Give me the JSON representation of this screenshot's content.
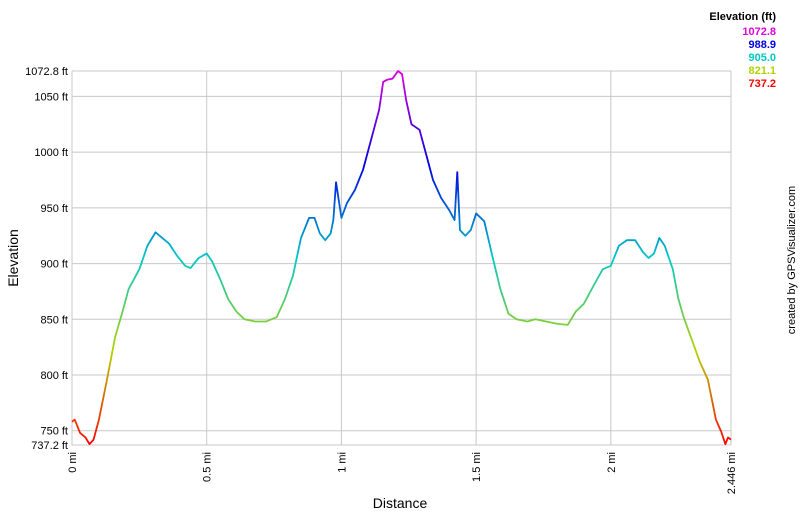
{
  "chart_data": {
    "type": "line",
    "x_label": "Distance",
    "y_label": "Elevation",
    "source": "created by GPSVisualizer.com",
    "legend": {
      "title": "Elevation (ft)",
      "stops": [
        {
          "value": 1072.8,
          "color": "#e000e0"
        },
        {
          "value": 988.9,
          "color": "#0000e0"
        },
        {
          "value": 905,
          "label": "905.0",
          "color": "#00c8c8"
        },
        {
          "value": 821.1,
          "color": "#b4d200"
        },
        {
          "value": 737.2,
          "color": "#ff0000"
        }
      ]
    },
    "grid": true,
    "xlim": [
      0,
      2.446
    ],
    "ylim": [
      737.2,
      1072.8
    ],
    "xticks": [
      {
        "value": 0,
        "label": "0 mi"
      },
      {
        "value": 0.5,
        "label": "0.5 mi"
      },
      {
        "value": 1,
        "label": "1 mi"
      },
      {
        "value": 1.5,
        "label": "1.5 mi"
      },
      {
        "value": 2,
        "label": "2 mi"
      },
      {
        "value": 2.446,
        "label": "2.446 mi"
      }
    ],
    "yticks": [
      {
        "value": 737.2,
        "label": "737.2 ft"
      },
      {
        "value": 750,
        "label": "750 ft"
      },
      {
        "value": 800,
        "label": "800 ft"
      },
      {
        "value": 850,
        "label": "850 ft"
      },
      {
        "value": 900,
        "label": "900 ft"
      },
      {
        "value": 950,
        "label": "950 ft"
      },
      {
        "value": 1000,
        "label": "1000 ft"
      },
      {
        "value": 1050,
        "label": "1050 ft"
      },
      {
        "value": 1072.8,
        "label": "1072.8 ft"
      }
    ],
    "x": [
      0,
      0.01,
      0.03,
      0.05,
      0.065,
      0.08,
      0.1,
      0.13,
      0.16,
      0.19,
      0.21,
      0.25,
      0.28,
      0.31,
      0.33,
      0.36,
      0.39,
      0.42,
      0.44,
      0.47,
      0.5,
      0.52,
      0.55,
      0.58,
      0.61,
      0.64,
      0.68,
      0.72,
      0.76,
      0.79,
      0.82,
      0.85,
      0.88,
      0.9,
      0.92,
      0.94,
      0.96,
      0.97,
      0.98,
      0.99,
      1,
      1.02,
      1.05,
      1.08,
      1.11,
      1.14,
      1.155,
      1.17,
      1.19,
      1.21,
      1.225,
      1.24,
      1.26,
      1.29,
      1.31,
      1.34,
      1.37,
      1.4,
      1.42,
      1.43,
      1.44,
      1.46,
      1.48,
      1.5,
      1.53,
      1.56,
      1.59,
      1.62,
      1.65,
      1.69,
      1.72,
      1.76,
      1.8,
      1.84,
      1.87,
      1.9,
      1.94,
      1.97,
      2,
      2.03,
      2.06,
      2.09,
      2.12,
      2.14,
      2.16,
      2.18,
      2.2,
      2.23,
      2.25,
      2.27,
      2.3,
      2.33,
      2.36,
      2.39,
      2.41,
      2.425,
      2.435,
      2.446
    ],
    "values": [
      758,
      760,
      748,
      744,
      738,
      742,
      760,
      796,
      834,
      859,
      877,
      895,
      916,
      928,
      924,
      918,
      907,
      898,
      896,
      905,
      909,
      902,
      886,
      868,
      857,
      850,
      848,
      848,
      852,
      868,
      889,
      923,
      941,
      941,
      927,
      921,
      927,
      939,
      973,
      957,
      941,
      954,
      966,
      984,
      1011,
      1038,
      1063,
      1065,
      1066,
      1072.8,
      1070,
      1047,
      1025,
      1020,
      1002,
      975,
      959,
      948,
      939,
      982,
      930,
      925,
      930,
      945,
      938,
      907,
      877,
      855,
      850,
      848,
      850,
      848,
      846,
      845,
      857,
      864,
      882,
      895,
      898,
      916,
      921,
      921,
      910,
      905,
      909,
      923,
      916,
      895,
      869,
      852,
      832,
      812,
      796,
      760,
      749,
      738,
      744,
      742
    ]
  }
}
